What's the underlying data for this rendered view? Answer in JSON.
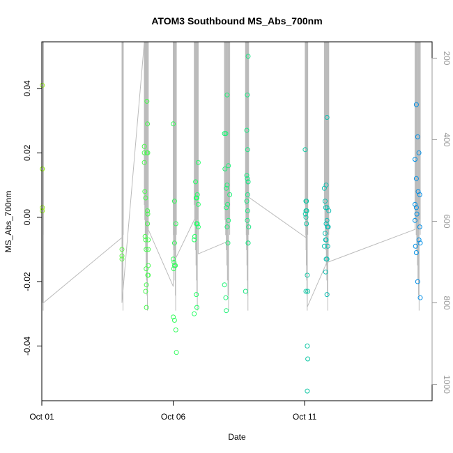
{
  "chart_data": {
    "type": "scatter",
    "title": "ATOM3 Southbound MS_Abs_700nm",
    "xlabel": "Date",
    "ylabel": "MS_Abs_700nm",
    "xlim": [
      0,
      14.85
    ],
    "ylim": [
      -0.057,
      0.0545
    ],
    "x_ticks": [
      {
        "value": 0,
        "label": "Oct 01"
      },
      {
        "value": 5,
        "label": "Oct 06"
      },
      {
        "value": 10,
        "label": "Oct 11"
      }
    ],
    "y_ticks": [
      {
        "value": -0.04,
        "label": "-0.04"
      },
      {
        "value": -0.02,
        "label": "-0.02"
      },
      {
        "value": 0.0,
        "label": "0.00"
      },
      {
        "value": 0.02,
        "label": "0.02"
      },
      {
        "value": 0.04,
        "label": "0.04"
      }
    ],
    "y2_axis": {
      "reversed": true,
      "lim": [
        160,
        1040
      ],
      "ticks": [
        {
          "value": 200,
          "label": "200"
        },
        {
          "value": 400,
          "label": "400"
        },
        {
          "value": 600,
          "label": "600"
        },
        {
          "value": 800,
          "label": "800"
        },
        {
          "value": 1000,
          "label": "1000"
        }
      ],
      "color": "#999999"
    },
    "grid": false,
    "legend": "none",
    "point_color_scale": {
      "start": "#99ee22",
      "mid": "#22ff66",
      "end": "#0088ee"
    },
    "depth_line_color": "#bbbbbb",
    "points": [
      [
        0.02,
        0.041
      ],
      [
        0.02,
        0.015
      ],
      [
        0.02,
        0.015
      ],
      [
        0.02,
        0.003
      ],
      [
        0.02,
        0.002
      ],
      [
        3.05,
        -0.01
      ],
      [
        3.05,
        -0.012
      ],
      [
        3.05,
        -0.013
      ],
      [
        3.9,
        0.022
      ],
      [
        3.9,
        0.02
      ],
      [
        3.9,
        0.017
      ],
      [
        3.92,
        0.008
      ],
      [
        3.95,
        0.006
      ],
      [
        3.93,
        -0.006
      ],
      [
        3.95,
        -0.007
      ],
      [
        3.97,
        -0.01
      ],
      [
        3.97,
        -0.016
      ],
      [
        3.95,
        -0.023
      ],
      [
        3.98,
        -0.028
      ],
      [
        4.0,
        0.036
      ],
      [
        4.02,
        0.029
      ],
      [
        4.0,
        0.02
      ],
      [
        4.03,
        0.02
      ],
      [
        4.02,
        0.002
      ],
      [
        4.03,
        0.001
      ],
      [
        4.02,
        -0.002
      ],
      [
        4.05,
        -0.007
      ],
      [
        4.05,
        -0.01
      ],
      [
        4.05,
        -0.015
      ],
      [
        4.03,
        -0.018
      ],
      [
        4.05,
        -0.018
      ],
      [
        3.98,
        -0.021
      ],
      [
        5.0,
        0.029
      ],
      [
        5.05,
        0.005
      ],
      [
        5.05,
        -0.008
      ],
      [
        5.0,
        -0.013
      ],
      [
        5.03,
        -0.014
      ],
      [
        5.05,
        -0.015
      ],
      [
        5.02,
        -0.016
      ],
      [
        5.08,
        -0.015
      ],
      [
        5.1,
        -0.002
      ],
      [
        5.0,
        -0.031
      ],
      [
        5.05,
        -0.032
      ],
      [
        5.1,
        -0.035
      ],
      [
        5.12,
        -0.042
      ],
      [
        5.8,
        -0.007
      ],
      [
        5.82,
        -0.006
      ],
      [
        5.85,
        0.011
      ],
      [
        5.87,
        0.006
      ],
      [
        5.9,
        0.006
      ],
      [
        5.92,
        0.007
      ],
      [
        5.95,
        0.017
      ],
      [
        5.95,
        0.004
      ],
      [
        5.88,
        -0.002
      ],
      [
        5.92,
        -0.002
      ],
      [
        5.95,
        -0.003
      ],
      [
        5.88,
        -0.024
      ],
      [
        5.9,
        -0.028
      ],
      [
        5.8,
        -0.03
      ],
      [
        6.95,
        0.026
      ],
      [
        7.0,
        0.026
      ],
      [
        7.05,
        0.038
      ],
      [
        7.1,
        0.016
      ],
      [
        6.97,
        0.015
      ],
      [
        7.02,
        0.009
      ],
      [
        7.05,
        0.01
      ],
      [
        7.07,
        0.004
      ],
      [
        7.02,
        0.003
      ],
      [
        7.1,
        -0.001
      ],
      [
        7.05,
        -0.003
      ],
      [
        7.08,
        -0.008
      ],
      [
        6.95,
        -0.021
      ],
      [
        7.0,
        -0.025
      ],
      [
        7.02,
        -0.029
      ],
      [
        7.15,
        0.007
      ],
      [
        7.85,
        0.05
      ],
      [
        7.82,
        0.038
      ],
      [
        7.8,
        0.027
      ],
      [
        7.83,
        0.021
      ],
      [
        7.8,
        0.013
      ],
      [
        7.82,
        0.012
      ],
      [
        7.85,
        0.011
      ],
      [
        7.85,
        0.011
      ],
      [
        7.83,
        0.007
      ],
      [
        7.8,
        0.005
      ],
      [
        7.83,
        0.002
      ],
      [
        7.82,
        -0.001
      ],
      [
        7.87,
        -0.003
      ],
      [
        7.85,
        -0.008
      ],
      [
        7.85,
        -0.008
      ],
      [
        7.75,
        -0.023
      ],
      [
        10.02,
        0.021
      ],
      [
        10.05,
        0.005
      ],
      [
        10.07,
        0.005
      ],
      [
        10.05,
        0.002
      ],
      [
        10.08,
        0.002
      ],
      [
        10.03,
        0.001
      ],
      [
        10.05,
        0.0
      ],
      [
        10.07,
        -0.002
      ],
      [
        10.1,
        -0.018
      ],
      [
        10.05,
        -0.023
      ],
      [
        10.12,
        -0.023
      ],
      [
        10.1,
        -0.04
      ],
      [
        10.12,
        -0.044
      ],
      [
        10.1,
        -0.054
      ],
      [
        10.75,
        0.009
      ],
      [
        10.78,
        0.005
      ],
      [
        10.8,
        0.003
      ],
      [
        10.85,
        0.031
      ],
      [
        10.82,
        0.01
      ],
      [
        10.85,
        0.003
      ],
      [
        10.78,
        -0.005
      ],
      [
        10.82,
        -0.002
      ],
      [
        10.85,
        -0.001
      ],
      [
        10.8,
        -0.007
      ],
      [
        10.82,
        -0.007
      ],
      [
        10.88,
        -0.009
      ],
      [
        10.87,
        -0.003
      ],
      [
        10.9,
        -0.003
      ],
      [
        10.92,
        0.002
      ],
      [
        10.75,
        -0.009
      ],
      [
        10.82,
        -0.013
      ],
      [
        10.85,
        -0.013
      ],
      [
        10.8,
        -0.017
      ],
      [
        10.85,
        -0.024
      ],
      [
        14.25,
        0.035
      ],
      [
        14.3,
        0.025
      ],
      [
        14.35,
        0.02
      ],
      [
        14.2,
        0.018
      ],
      [
        14.25,
        0.012
      ],
      [
        14.32,
        0.008
      ],
      [
        14.38,
        0.007
      ],
      [
        14.2,
        0.004
      ],
      [
        14.25,
        0.003
      ],
      [
        14.27,
        0.001
      ],
      [
        14.2,
        -0.001
      ],
      [
        14.38,
        -0.003
      ],
      [
        14.22,
        -0.009
      ],
      [
        14.4,
        -0.008
      ],
      [
        14.35,
        -0.007
      ],
      [
        14.25,
        -0.011
      ],
      [
        14.3,
        -0.02
      ],
      [
        14.4,
        -0.025
      ]
    ]
  }
}
